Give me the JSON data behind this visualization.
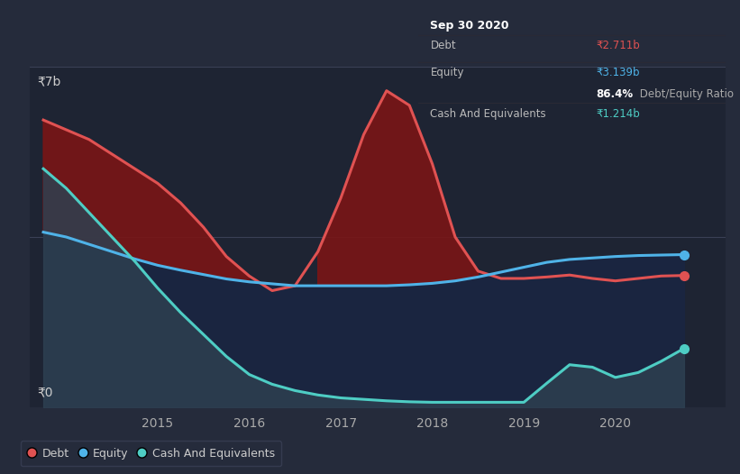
{
  "bg_color": "#252b3b",
  "plot_bg_color": "#1e2433",
  "grid_color": "#3a4055",
  "title_label": "₹7b",
  "zero_label": "₹0",
  "ylim": [
    0,
    7
  ],
  "xlim": [
    2013.6,
    2021.2
  ],
  "debt_color": "#e05252",
  "equity_color": "#4fb3e8",
  "cash_color": "#4ecdc4",
  "debt_fill_color": "#7a1515",
  "equity_fill_color": "#1a2540",
  "cash_fill_color": "#2a3848",
  "tooltip_bg": "#0a0a0a",
  "tooltip_title": "Sep 30 2020",
  "tooltip_debt_label": "Debt",
  "tooltip_debt_value": "₹2.711b",
  "tooltip_equity_label": "Equity",
  "tooltip_equity_value": "₹3.139b",
  "tooltip_ratio_bold": "86.4%",
  "tooltip_ratio_text": " Debt/Equity Ratio",
  "tooltip_cash_label": "Cash And Equivalents",
  "tooltip_cash_value": "₹1.214b",
  "legend_items": [
    "Debt",
    "Equity",
    "Cash And Equivalents"
  ],
  "years": [
    2013.75,
    2014.0,
    2014.25,
    2014.5,
    2014.75,
    2015.0,
    2015.25,
    2015.5,
    2015.75,
    2016.0,
    2016.25,
    2016.5,
    2016.75,
    2017.0,
    2017.25,
    2017.5,
    2017.75,
    2018.0,
    2018.25,
    2018.5,
    2018.75,
    2019.0,
    2019.25,
    2019.5,
    2019.75,
    2020.0,
    2020.25,
    2020.5,
    2020.75
  ],
  "debt": [
    5.9,
    5.7,
    5.5,
    5.2,
    4.9,
    4.6,
    4.2,
    3.7,
    3.1,
    2.7,
    2.4,
    2.5,
    3.2,
    4.3,
    5.6,
    6.5,
    6.2,
    5.0,
    3.5,
    2.8,
    2.65,
    2.65,
    2.68,
    2.72,
    2.65,
    2.6,
    2.65,
    2.7,
    2.711
  ],
  "equity": [
    3.6,
    3.5,
    3.35,
    3.2,
    3.05,
    2.92,
    2.82,
    2.73,
    2.64,
    2.58,
    2.54,
    2.5,
    2.5,
    2.5,
    2.5,
    2.5,
    2.52,
    2.55,
    2.6,
    2.68,
    2.78,
    2.88,
    2.98,
    3.04,
    3.07,
    3.1,
    3.12,
    3.13,
    3.139
  ],
  "cash": [
    4.9,
    4.5,
    4.0,
    3.5,
    3.0,
    2.45,
    1.95,
    1.5,
    1.05,
    0.68,
    0.48,
    0.35,
    0.26,
    0.2,
    0.17,
    0.14,
    0.12,
    0.11,
    0.11,
    0.11,
    0.11,
    0.11,
    0.5,
    0.88,
    0.83,
    0.62,
    0.72,
    0.95,
    1.214
  ]
}
